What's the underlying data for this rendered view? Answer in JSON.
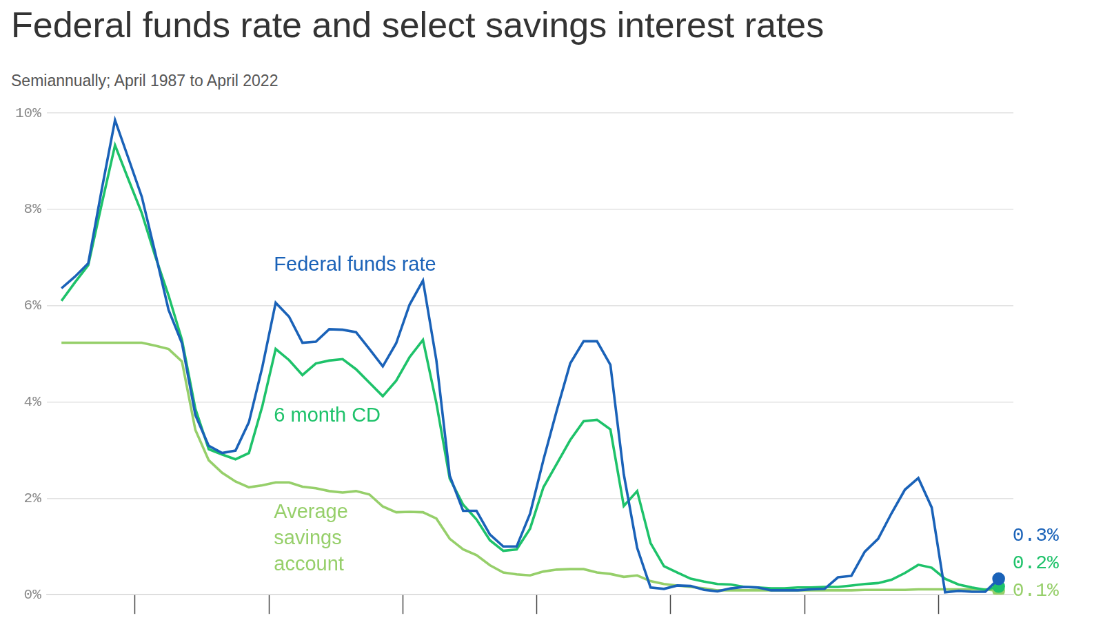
{
  "chart_data": {
    "type": "line",
    "title": "Federal funds rate and select savings interest rates",
    "subtitle": "Semiannually; April 1987 to April 2022",
    "x": [
      1987.25,
      1987.75,
      1988.25,
      1988.75,
      1989.25,
      1989.75,
      1990.25,
      1990.75,
      1991.25,
      1991.75,
      1992.25,
      1992.75,
      1993.25,
      1993.75,
      1994.25,
      1994.75,
      1995.25,
      1995.75,
      1996.25,
      1996.75,
      1997.25,
      1997.75,
      1998.25,
      1998.75,
      1999.25,
      1999.75,
      2000.25,
      2000.75,
      2001.25,
      2001.75,
      2002.25,
      2002.75,
      2003.25,
      2003.75,
      2004.25,
      2004.75,
      2005.25,
      2005.75,
      2006.25,
      2006.75,
      2007.25,
      2007.75,
      2008.25,
      2008.75,
      2009.25,
      2009.75,
      2010.25,
      2010.75,
      2011.25,
      2011.75,
      2012.25,
      2012.75,
      2013.25,
      2013.75,
      2014.25,
      2014.75,
      2015.25,
      2015.75,
      2016.25,
      2016.75,
      2017.25,
      2017.75,
      2018.25,
      2018.75,
      2019.25,
      2019.75,
      2020.25,
      2020.75,
      2021.25,
      2021.75,
      2022.25
    ],
    "series": [
      {
        "name": "Federal funds rate",
        "color": "#1a62b8",
        "values": [
          6.36,
          6.6,
          6.88,
          8.4,
          9.85,
          9.06,
          8.26,
          7.1,
          5.91,
          5.22,
          3.73,
          3.09,
          2.94,
          2.99,
          3.58,
          4.72,
          6.06,
          5.77,
          5.23,
          5.25,
          5.51,
          5.5,
          5.45,
          5.1,
          4.74,
          5.22,
          6.02,
          6.52,
          4.87,
          2.47,
          1.74,
          1.74,
          1.25,
          1.0,
          1.0,
          1.68,
          2.8,
          3.83,
          4.8,
          5.26,
          5.26,
          4.77,
          2.5,
          0.97,
          0.15,
          0.12,
          0.19,
          0.18,
          0.1,
          0.07,
          0.13,
          0.16,
          0.15,
          0.09,
          0.09,
          0.09,
          0.11,
          0.12,
          0.36,
          0.39,
          0.89,
          1.16,
          1.69,
          2.18,
          2.42,
          1.81,
          0.05,
          0.08,
          0.06,
          0.06,
          0.33
        ],
        "value_labels": [
          null,
          null,
          null,
          null,
          null,
          null,
          null,
          null,
          null,
          null,
          null,
          null,
          null,
          null,
          null,
          null,
          null,
          null,
          null,
          null,
          null,
          null,
          null,
          null,
          null,
          null,
          null,
          null,
          null,
          null,
          null,
          null,
          null,
          null,
          null,
          null,
          null,
          null,
          null,
          null,
          null,
          null,
          null,
          null,
          null,
          null,
          null,
          null,
          null,
          null,
          null,
          null,
          null,
          null,
          null,
          null,
          null,
          null,
          null,
          null,
          null,
          null,
          null,
          null,
          null,
          null,
          null,
          null,
          null,
          null,
          "0.3%"
        ]
      },
      {
        "name": "6 month CD",
        "color": "#1ec26a",
        "values": [
          6.1,
          6.48,
          6.84,
          8.1,
          9.33,
          8.62,
          7.92,
          7.03,
          6.21,
          5.29,
          3.86,
          3.02,
          2.91,
          2.81,
          2.94,
          3.91,
          5.1,
          4.87,
          4.56,
          4.8,
          4.86,
          4.89,
          4.68,
          4.4,
          4.12,
          4.44,
          4.93,
          5.29,
          3.98,
          2.41,
          1.87,
          1.56,
          1.13,
          0.91,
          0.94,
          1.37,
          2.23,
          2.72,
          3.21,
          3.6,
          3.63,
          3.43,
          1.84,
          2.15,
          1.07,
          0.59,
          0.46,
          0.33,
          0.27,
          0.22,
          0.21,
          0.16,
          0.15,
          0.13,
          0.13,
          0.15,
          0.15,
          0.16,
          0.16,
          0.19,
          0.22,
          0.24,
          0.31,
          0.45,
          0.62,
          0.56,
          0.33,
          0.21,
          0.15,
          0.1,
          0.17
        ],
        "value_labels": [
          null,
          null,
          null,
          null,
          null,
          null,
          null,
          null,
          null,
          null,
          null,
          null,
          null,
          null,
          null,
          null,
          null,
          null,
          null,
          null,
          null,
          null,
          null,
          null,
          null,
          null,
          null,
          null,
          null,
          null,
          null,
          null,
          null,
          null,
          null,
          null,
          null,
          null,
          null,
          null,
          null,
          null,
          null,
          null,
          null,
          null,
          null,
          null,
          null,
          null,
          null,
          null,
          null,
          null,
          null,
          null,
          null,
          null,
          null,
          null,
          null,
          null,
          null,
          null,
          null,
          null,
          null,
          null,
          null,
          null,
          "0.2%"
        ]
      },
      {
        "name": "Average savings account",
        "color": "#96cf6a",
        "values": [
          5.23,
          5.23,
          5.23,
          5.23,
          5.23,
          5.23,
          5.23,
          5.17,
          5.1,
          4.84,
          3.42,
          2.79,
          2.53,
          2.35,
          2.23,
          2.27,
          2.33,
          2.33,
          2.24,
          2.21,
          2.15,
          2.12,
          2.15,
          2.08,
          1.83,
          1.71,
          1.72,
          1.71,
          1.58,
          1.16,
          0.94,
          0.82,
          0.61,
          0.46,
          0.42,
          0.4,
          0.48,
          0.52,
          0.53,
          0.53,
          0.46,
          0.43,
          0.37,
          0.4,
          0.28,
          0.22,
          0.19,
          0.16,
          0.13,
          0.09,
          0.09,
          0.09,
          0.09,
          0.09,
          0.09,
          0.09,
          0.09,
          0.09,
          0.09,
          0.09,
          0.1,
          0.1,
          0.1,
          0.1,
          0.11,
          0.11,
          0.11,
          0.11,
          0.11,
          0.11,
          0.08
        ],
        "value_labels": [
          null,
          null,
          null,
          null,
          null,
          null,
          null,
          null,
          null,
          null,
          null,
          null,
          null,
          null,
          null,
          null,
          null,
          null,
          null,
          null,
          null,
          null,
          null,
          null,
          null,
          null,
          null,
          null,
          null,
          null,
          null,
          null,
          null,
          null,
          null,
          null,
          null,
          null,
          null,
          null,
          null,
          null,
          null,
          null,
          null,
          null,
          null,
          null,
          null,
          null,
          null,
          null,
          null,
          null,
          null,
          null,
          null,
          null,
          null,
          null,
          null,
          null,
          null,
          null,
          null,
          null,
          null,
          null,
          null,
          null,
          "0.1%"
        ]
      }
    ],
    "xlim": [
      1986.7,
      2022.8
    ],
    "xticks": [
      1990,
      1995,
      2000,
      2005,
      2010,
      2015,
      2020
    ],
    "ylim": [
      0,
      10
    ],
    "yticks": [
      {
        "value": 0,
        "label": "0%"
      },
      {
        "value": 2,
        "label": "2%"
      },
      {
        "value": 4,
        "label": "4%"
      },
      {
        "value": 6,
        "label": "6%"
      },
      {
        "value": 8,
        "label": "8%"
      },
      {
        "value": 10,
        "label": "10%"
      }
    ],
    "grid": true,
    "tick_labels": "y"
  }
}
